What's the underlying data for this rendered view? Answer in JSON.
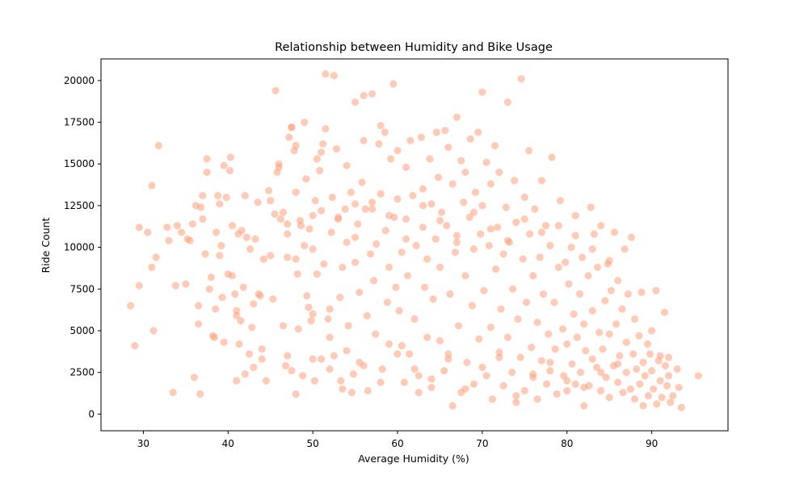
{
  "chart_data": {
    "type": "scatter",
    "title": "Relationship between Humidity and Bike Usage",
    "xlabel": "Average Humidity (%)",
    "ylabel": "Ride Count",
    "xlim": [
      25,
      99
    ],
    "ylim": [
      -1000,
      21300
    ],
    "xticks": [
      30,
      40,
      50,
      60,
      70,
      80,
      90
    ],
    "yticks": [
      0,
      2500,
      5000,
      7500,
      10000,
      12500,
      15000,
      17500,
      20000
    ],
    "grid": false,
    "marker_color": "#FFA07A",
    "marker_opacity": 0.55,
    "points": [
      [
        28.5,
        6500
      ],
      [
        29,
        4100
      ],
      [
        29.5,
        7700
      ],
      [
        29.5,
        11200
      ],
      [
        30.5,
        10900
      ],
      [
        31,
        13700
      ],
      [
        31,
        8800
      ],
      [
        31.2,
        5000
      ],
      [
        31.5,
        9400
      ],
      [
        31.8,
        16100
      ],
      [
        32.8,
        11200
      ],
      [
        33,
        10400
      ],
      [
        33.5,
        1300
      ],
      [
        33.8,
        7700
      ],
      [
        34,
        11300
      ],
      [
        34.5,
        10900
      ],
      [
        35,
        7800
      ],
      [
        35.2,
        10500
      ],
      [
        35.5,
        10400
      ],
      [
        35.8,
        11400
      ],
      [
        36,
        2200
      ],
      [
        36.2,
        12500
      ],
      [
        36.5,
        6500
      ],
      [
        36.5,
        5400
      ],
      [
        36.7,
        1200
      ],
      [
        36.8,
        12400
      ],
      [
        37,
        13100
      ],
      [
        37,
        11700
      ],
      [
        37.3,
        9600
      ],
      [
        37.5,
        14500
      ],
      [
        37.5,
        15300
      ],
      [
        37.8,
        7500
      ],
      [
        38,
        8200
      ],
      [
        38.2,
        4700
      ],
      [
        38.4,
        4600
      ],
      [
        38.5,
        6300
      ],
      [
        38.6,
        10900
      ],
      [
        38.8,
        13100
      ],
      [
        39,
        9500
      ],
      [
        39,
        12600
      ],
      [
        39.2,
        10100
      ],
      [
        39.3,
        7000
      ],
      [
        39.5,
        4300
      ],
      [
        39.5,
        14900
      ],
      [
        39.8,
        13000
      ],
      [
        40,
        8400
      ],
      [
        40.2,
        14600
      ],
      [
        40.3,
        15400
      ],
      [
        40.5,
        11300
      ],
      [
        40.5,
        8300
      ],
      [
        40.8,
        7200
      ],
      [
        41,
        6200
      ],
      [
        41,
        5900
      ],
      [
        41,
        2000
      ],
      [
        41.2,
        10800
      ],
      [
        41.3,
        4200
      ],
      [
        41.5,
        5600
      ],
      [
        41.6,
        11000
      ],
      [
        41.8,
        7600
      ],
      [
        42,
        2400
      ],
      [
        42,
        13100
      ],
      [
        42.2,
        10600
      ],
      [
        42.5,
        3600
      ],
      [
        42.6,
        9900
      ],
      [
        42.8,
        5200
      ],
      [
        43,
        6600
      ],
      [
        43,
        2800
      ],
      [
        43.2,
        10500
      ],
      [
        43.5,
        12700
      ],
      [
        43.6,
        7200
      ],
      [
        43.8,
        7100
      ],
      [
        44,
        3900
      ],
      [
        44,
        3300
      ],
      [
        44.2,
        9300
      ],
      [
        44.5,
        2000
      ],
      [
        44.8,
        13400
      ],
      [
        45,
        12800
      ],
      [
        45,
        9500
      ],
      [
        45.3,
        6900
      ],
      [
        45.5,
        12000
      ],
      [
        45.6,
        19400
      ],
      [
        45.8,
        14500
      ],
      [
        46,
        15000
      ],
      [
        46,
        14800
      ],
      [
        46.2,
        11700
      ],
      [
        46.5,
        12100
      ],
      [
        46.5,
        5300
      ],
      [
        46.8,
        2900
      ],
      [
        47,
        3500
      ],
      [
        47,
        10800
      ],
      [
        47,
        11400
      ],
      [
        47.2,
        16600
      ],
      [
        47.5,
        17200
      ],
      [
        47.5,
        17200
      ],
      [
        47.5,
        2600
      ],
      [
        47.8,
        15800
      ],
      [
        48,
        16100
      ],
      [
        48,
        13300
      ],
      [
        48,
        9300
      ],
      [
        48.2,
        8400
      ],
      [
        48.3,
        5100
      ],
      [
        48.5,
        11600
      ],
      [
        48.6,
        11300
      ],
      [
        48.8,
        2300
      ],
      [
        49,
        17500
      ],
      [
        49.2,
        14100
      ],
      [
        49.3,
        7100
      ],
      [
        49.5,
        6400
      ],
      [
        49.6,
        11100
      ],
      [
        49.8,
        5600
      ],
      [
        50,
        6000
      ],
      [
        50,
        11900
      ],
      [
        50,
        9900
      ],
      [
        50.2,
        2000
      ],
      [
        50.3,
        12800
      ],
      [
        50.5,
        8400
      ],
      [
        50.5,
        15300
      ],
      [
        50.8,
        14600
      ],
      [
        51,
        3300
      ],
      [
        51,
        15700
      ],
      [
        51.2,
        16200
      ],
      [
        51.3,
        9000
      ],
      [
        51.5,
        17100
      ],
      [
        51.5,
        20400
      ],
      [
        51.8,
        5700
      ],
      [
        52,
        4600
      ],
      [
        52,
        6300
      ],
      [
        52.2,
        10900
      ],
      [
        52.3,
        13000
      ],
      [
        52.5,
        3500
      ],
      [
        52.5,
        20300
      ],
      [
        52.8,
        15900
      ],
      [
        53,
        11700
      ],
      [
        53.2,
        7000
      ],
      [
        53.3,
        2000
      ],
      [
        53.5,
        8800
      ],
      [
        53.5,
        1500
      ],
      [
        53.8,
        12300
      ],
      [
        54,
        14900
      ],
      [
        54,
        10300
      ],
      [
        54.2,
        5300
      ],
      [
        54.5,
        13300
      ],
      [
        54.6,
        1300
      ],
      [
        54.8,
        2400
      ],
      [
        55,
        18700
      ],
      [
        55,
        12600
      ],
      [
        55,
        9100
      ],
      [
        55.3,
        11400
      ],
      [
        55.5,
        3100
      ],
      [
        55.5,
        7300
      ],
      [
        55.8,
        13900
      ],
      [
        56,
        19100
      ],
      [
        56,
        16400
      ],
      [
        56.2,
        12300
      ],
      [
        56.4,
        5900
      ],
      [
        56.5,
        1400
      ],
      [
        56.8,
        9600
      ],
      [
        57,
        19200
      ],
      [
        57,
        12700
      ],
      [
        57.2,
        8000
      ],
      [
        57.4,
        4800
      ],
      [
        57.5,
        10200
      ],
      [
        57.8,
        16200
      ],
      [
        58,
        17300
      ],
      [
        58,
        13200
      ],
      [
        58.2,
        2700
      ],
      [
        58.5,
        16900
      ],
      [
        58.6,
        11000
      ],
      [
        58.8,
        6700
      ],
      [
        59,
        8800
      ],
      [
        59,
        4200
      ],
      [
        59.2,
        15300
      ],
      [
        59.5,
        19800
      ],
      [
        59.6,
        11800
      ],
      [
        59.8,
        7600
      ],
      [
        60,
        15800
      ],
      [
        60,
        12900
      ],
      [
        60.2,
        6200
      ],
      [
        60.5,
        4100
      ],
      [
        60.5,
        9700
      ],
      [
        60.8,
        1900
      ],
      [
        61,
        14800
      ],
      [
        61,
        11700
      ],
      [
        61.2,
        8300
      ],
      [
        61.4,
        3600
      ],
      [
        61.5,
        16400
      ],
      [
        61.8,
        13100
      ],
      [
        62,
        5700
      ],
      [
        62.2,
        10100
      ],
      [
        62.5,
        1300
      ],
      [
        62.5,
        2300
      ],
      [
        62.8,
        16600
      ],
      [
        63,
        13500
      ],
      [
        63,
        11200
      ],
      [
        63.2,
        7600
      ],
      [
        63.5,
        4600
      ],
      [
        63.5,
        9300
      ],
      [
        63.8,
        15300
      ],
      [
        64,
        12600
      ],
      [
        64,
        1600
      ],
      [
        64.2,
        6900
      ],
      [
        64.5,
        10500
      ],
      [
        64.6,
        16900
      ],
      [
        64.8,
        14200
      ],
      [
        65,
        8800
      ],
      [
        65,
        4400
      ],
      [
        65.2,
        12100
      ],
      [
        65.5,
        2600
      ],
      [
        65.6,
        17000
      ],
      [
        65.8,
        11300
      ],
      [
        66,
        16000
      ],
      [
        66,
        3600
      ],
      [
        66.2,
        7200
      ],
      [
        66.5,
        13800
      ],
      [
        66.5,
        500
      ],
      [
        66.8,
        9700
      ],
      [
        67,
        17800
      ],
      [
        67,
        10700
      ],
      [
        67.2,
        5300
      ],
      [
        67.5,
        1300
      ],
      [
        67.5,
        15200
      ],
      [
        67.8,
        12700
      ],
      [
        68,
        14500
      ],
      [
        68,
        8300
      ],
      [
        68.2,
        3100
      ],
      [
        68.5,
        11800
      ],
      [
        68.6,
        16500
      ],
      [
        68.8,
        6500
      ],
      [
        69,
        1800
      ],
      [
        69,
        9900
      ],
      [
        69.2,
        13300
      ],
      [
        69.5,
        16900
      ],
      [
        69.6,
        4500
      ],
      [
        69.8,
        10800
      ],
      [
        70,
        19300
      ],
      [
        70,
        12500
      ],
      [
        70.2,
        7400
      ],
      [
        70.5,
        2300
      ],
      [
        70.5,
        15100
      ],
      [
        70.8,
        10100
      ],
      [
        71,
        5200
      ],
      [
        71,
        13800
      ],
      [
        71.2,
        900
      ],
      [
        71.5,
        16100
      ],
      [
        71.6,
        8700
      ],
      [
        71.8,
        11200
      ],
      [
        72,
        3400
      ],
      [
        72,
        14500
      ],
      [
        72.2,
        6300
      ],
      [
        72.5,
        9600
      ],
      [
        72.5,
        1700
      ],
      [
        72.8,
        12400
      ],
      [
        73,
        18700
      ],
      [
        73,
        4600
      ],
      [
        73.2,
        10300
      ],
      [
        73.5,
        2500
      ],
      [
        73.6,
        7500
      ],
      [
        73.8,
        14000
      ],
      [
        74,
        700
      ],
      [
        74,
        11500
      ],
      [
        74.2,
        5700
      ],
      [
        74.5,
        3400
      ],
      [
        74.6,
        20100
      ],
      [
        74.8,
        9300
      ],
      [
        75,
        13000
      ],
      [
        75,
        1400
      ],
      [
        75.2,
        6700
      ],
      [
        75.5,
        15800
      ],
      [
        75.6,
        10800
      ],
      [
        75.8,
        4000
      ],
      [
        76,
        8300
      ],
      [
        76,
        2200
      ],
      [
        76.2,
        12300
      ],
      [
        76.5,
        5500
      ],
      [
        76.5,
        900
      ],
      [
        76.8,
        9400
      ],
      [
        77,
        14000
      ],
      [
        77,
        3200
      ],
      [
        77.2,
        7200
      ],
      [
        77.5,
        11300
      ],
      [
        77.6,
        1800
      ],
      [
        77.8,
        4800
      ],
      [
        78,
        10100
      ],
      [
        78,
        2600
      ],
      [
        78.2,
        15400
      ],
      [
        78.5,
        6700
      ],
      [
        78.6,
        3900
      ],
      [
        78.8,
        1200
      ],
      [
        79,
        8800
      ],
      [
        79.2,
        12800
      ],
      [
        79.5,
        5100
      ],
      [
        79.6,
        2300
      ],
      [
        79.8,
        9100
      ],
      [
        80,
        4200
      ],
      [
        80,
        1400
      ],
      [
        80.2,
        7800
      ],
      [
        80.5,
        10000
      ],
      [
        80.6,
        3000
      ],
      [
        80.8,
        6000
      ],
      [
        81,
        1800
      ],
      [
        81,
        11900
      ],
      [
        81.2,
        4600
      ],
      [
        81.5,
        7200
      ],
      [
        81.6,
        2500
      ],
      [
        81.8,
        9400
      ],
      [
        82,
        500
      ],
      [
        82,
        5400
      ],
      [
        82.2,
        3800
      ],
      [
        82.5,
        8300
      ],
      [
        82.6,
        1700
      ],
      [
        82.8,
        12400
      ],
      [
        83,
        6200
      ],
      [
        83,
        3300
      ],
      [
        83.2,
        10800
      ],
      [
        83.5,
        2800
      ],
      [
        83.6,
        8800
      ],
      [
        83.8,
        4900
      ],
      [
        84,
        1400
      ],
      [
        84,
        11300
      ],
      [
        84.2,
        3900
      ],
      [
        84.5,
        6800
      ],
      [
        84.6,
        2200
      ],
      [
        84.8,
        9000
      ],
      [
        85,
        4800
      ],
      [
        85,
        1000
      ],
      [
        85.2,
        7400
      ],
      [
        85.5,
        2900
      ],
      [
        85.6,
        10900
      ],
      [
        85.8,
        5400
      ],
      [
        86,
        1900
      ],
      [
        86,
        8000
      ],
      [
        86.2,
        3500
      ],
      [
        86.5,
        6300
      ],
      [
        86.6,
        1300
      ],
      [
        86.8,
        9900
      ],
      [
        87,
        4300
      ],
      [
        87,
        2500
      ],
      [
        87.2,
        7200
      ],
      [
        87.5,
        1500
      ],
      [
        87.6,
        10600
      ],
      [
        87.8,
        3600
      ],
      [
        88,
        5700
      ],
      [
        88,
        900
      ],
      [
        88.2,
        2700
      ],
      [
        88.5,
        4700
      ],
      [
        88.6,
        1800
      ],
      [
        88.8,
        7300
      ],
      [
        89,
        3100
      ],
      [
        89,
        500
      ],
      [
        89.2,
        2300
      ],
      [
        89.5,
        4200
      ],
      [
        89.6,
        1100
      ],
      [
        89.8,
        3600
      ],
      [
        90,
        2600
      ],
      [
        90,
        5000
      ],
      [
        90.2,
        1500
      ],
      [
        90.5,
        7400
      ],
      [
        90.6,
        600
      ],
      [
        90.8,
        3200
      ],
      [
        91,
        2000
      ],
      [
        91,
        3500
      ],
      [
        91.2,
        1000
      ],
      [
        91.5,
        6100
      ],
      [
        91.6,
        2900
      ],
      [
        91.8,
        1700
      ],
      [
        92,
        2300
      ],
      [
        92,
        3400
      ],
      [
        92.2,
        700
      ],
      [
        92.5,
        1100
      ],
      [
        93,
        2700
      ],
      [
        93.2,
        1600
      ],
      [
        93.5,
        400
      ],
      [
        95.5,
        2300
      ],
      [
        48,
        1200
      ],
      [
        50,
        3300
      ],
      [
        52,
        2700
      ],
      [
        54,
        3800
      ],
      [
        56,
        2900
      ],
      [
        58,
        1900
      ],
      [
        60,
        3600
      ],
      [
        62,
        2700
      ],
      [
        64,
        2100
      ],
      [
        66,
        3300
      ],
      [
        68,
        1500
      ],
      [
        70,
        2800
      ],
      [
        72,
        3700
      ],
      [
        74,
        1100
      ],
      [
        76,
        2400
      ],
      [
        78,
        3100
      ],
      [
        80,
        2000
      ],
      [
        82,
        1600
      ],
      [
        84,
        2500
      ],
      [
        86,
        3000
      ],
      [
        47,
        9400
      ],
      [
        49,
        10100
      ],
      [
        51,
        12200
      ],
      [
        53,
        11800
      ],
      [
        55,
        10600
      ],
      [
        57,
        12300
      ],
      [
        59,
        11900
      ],
      [
        61,
        10500
      ],
      [
        63,
        12500
      ],
      [
        65,
        11600
      ],
      [
        67,
        10300
      ],
      [
        69,
        12100
      ],
      [
        71,
        11100
      ],
      [
        73,
        10400
      ],
      [
        75,
        11700
      ],
      [
        77,
        10900
      ],
      [
        79,
        11300
      ],
      [
        81,
        10700
      ],
      [
        83,
        9900
      ],
      [
        85,
        9200
      ]
    ]
  }
}
